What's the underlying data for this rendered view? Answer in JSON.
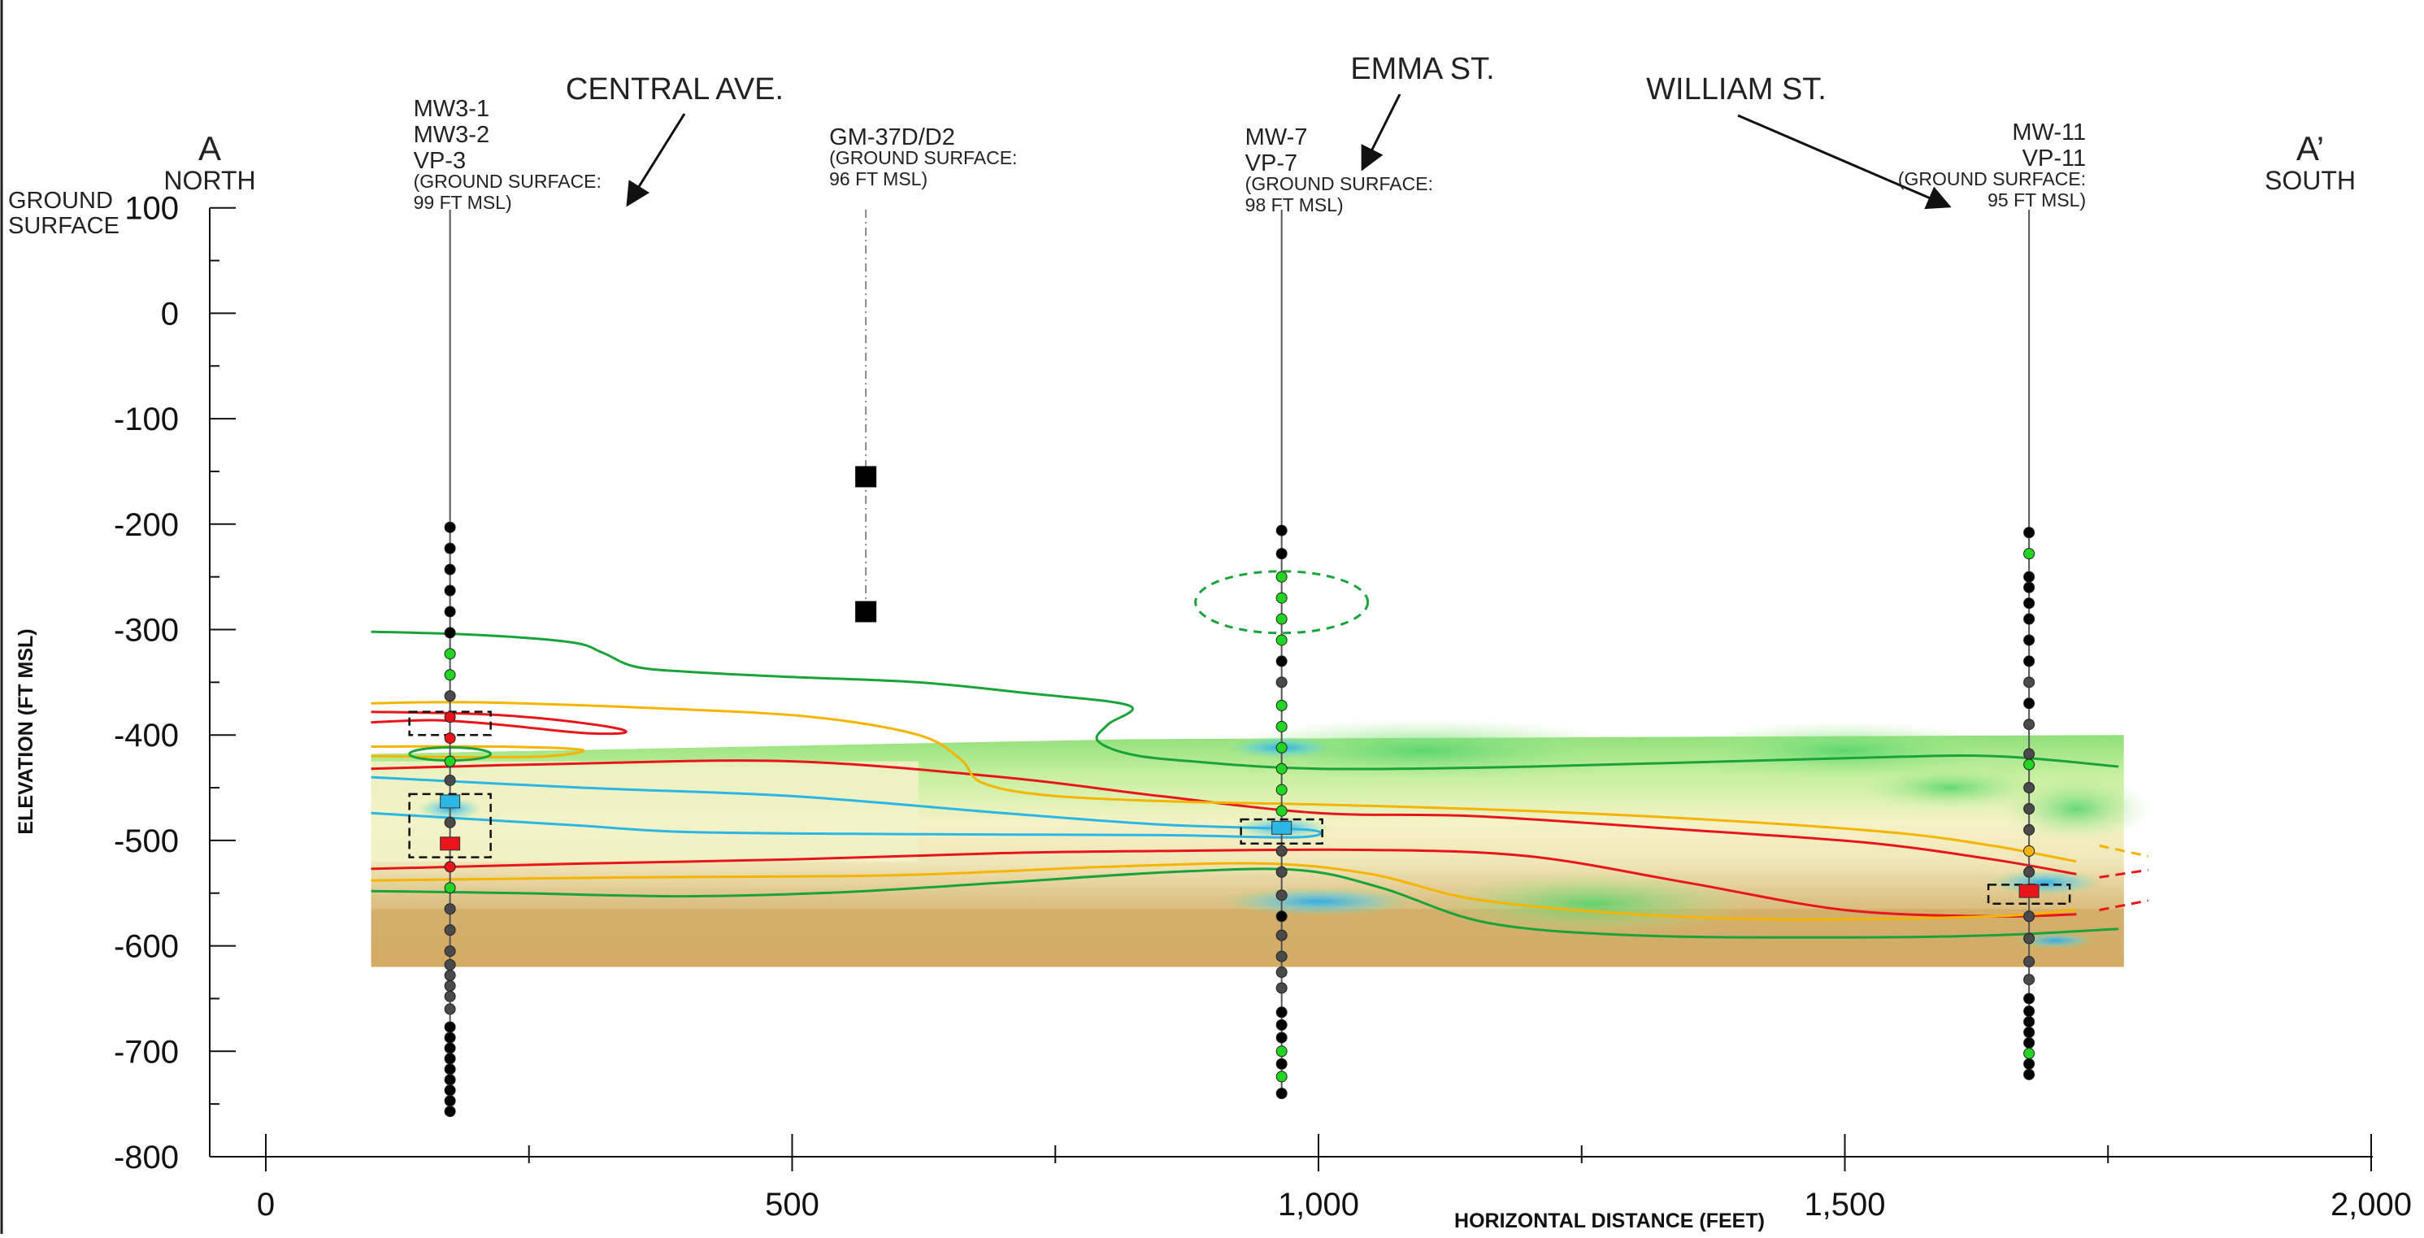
{
  "section": {
    "start_label": "A",
    "start_direction": "NORTH",
    "end_label": "A’",
    "end_direction": "SOUTH",
    "ground_surface_label": [
      "GROUND",
      "SURFACE"
    ]
  },
  "axes": {
    "y_title": "ELEVATION (FT MSL)",
    "x_title": "HORIZONTAL DISTANCE (FEET)",
    "y_range": [
      -800,
      100
    ],
    "x_range": [
      0,
      2000
    ],
    "y_ticks": [
      {
        "value": 100,
        "label": "100"
      },
      {
        "value": 0,
        "label": "0"
      },
      {
        "value": -100,
        "label": "-100"
      },
      {
        "value": -200,
        "label": "-200"
      },
      {
        "value": -300,
        "label": "-300"
      },
      {
        "value": -400,
        "label": "-400"
      },
      {
        "value": -500,
        "label": "-500"
      },
      {
        "value": -600,
        "label": "-600"
      },
      {
        "value": -700,
        "label": "-700"
      },
      {
        "value": -800,
        "label": "-800"
      }
    ],
    "x_ticks": [
      {
        "value": 0,
        "label": "0"
      },
      {
        "value": 500,
        "label": "500"
      },
      {
        "value": 1000,
        "label": "1,000"
      },
      {
        "value": 1500,
        "label": "1,500"
      },
      {
        "value": 2000,
        "label": "2,000"
      }
    ]
  },
  "streets": [
    {
      "name": "CENTRAL AVE.",
      "points_to_x": 345
    },
    {
      "name": "EMMA ST.",
      "points_to_x": 1040
    },
    {
      "name": "WILLIAM ST.",
      "points_to_x": 1600
    }
  ],
  "wells": [
    {
      "x": 175,
      "label_lines": [
        "MW3-1",
        "MW3-2",
        "VP-3"
      ],
      "ground_lines": [
        "(GROUND SURFACE:",
        "99 FT MSL)"
      ],
      "align": "left",
      "points": [
        {
          "elev": -203,
          "c": "black"
        },
        {
          "elev": -223,
          "c": "black"
        },
        {
          "elev": -243,
          "c": "black"
        },
        {
          "elev": -263,
          "c": "black"
        },
        {
          "elev": -283,
          "c": "black"
        },
        {
          "elev": -303,
          "c": "black"
        },
        {
          "elev": -323,
          "c": "green"
        },
        {
          "elev": -343,
          "c": "green"
        },
        {
          "elev": -363,
          "c": "grey"
        },
        {
          "elev": -383,
          "c": "red"
        },
        {
          "elev": -403,
          "c": "red"
        },
        {
          "elev": -425,
          "c": "green"
        },
        {
          "elev": -443,
          "c": "grey"
        },
        {
          "elev": -483,
          "c": "grey"
        },
        {
          "elev": -525,
          "c": "red"
        },
        {
          "elev": -545,
          "c": "green"
        },
        {
          "elev": -565,
          "c": "grey"
        },
        {
          "elev": -585,
          "c": "grey"
        },
        {
          "elev": -605,
          "c": "grey"
        },
        {
          "elev": -618,
          "c": "grey"
        },
        {
          "elev": -628,
          "c": "grey"
        },
        {
          "elev": -638,
          "c": "grey"
        },
        {
          "elev": -648,
          "c": "grey"
        },
        {
          "elev": -660,
          "c": "grey"
        },
        {
          "elev": -677,
          "c": "black"
        },
        {
          "elev": -687,
          "c": "black"
        },
        {
          "elev": -697,
          "c": "black"
        },
        {
          "elev": -707,
          "c": "black"
        },
        {
          "elev": -717,
          "c": "black"
        },
        {
          "elev": -727,
          "c": "black"
        },
        {
          "elev": -737,
          "c": "black"
        },
        {
          "elev": -747,
          "c": "black"
        },
        {
          "elev": -757,
          "c": "black"
        }
      ],
      "screens": [
        {
          "elev": -463,
          "c": "cyan"
        },
        {
          "elev": -503,
          "c": "red"
        }
      ],
      "boxes": [
        {
          "top": -378,
          "bottom": -400
        },
        {
          "top": -456,
          "bottom": -516
        }
      ]
    },
    {
      "x": 570,
      "label_lines": [
        "GM-37D/D2"
      ],
      "ground_lines": [
        "(GROUND SURFACE:",
        "96 FT MSL)"
      ],
      "align": "left",
      "dashed": true,
      "points": [],
      "squares": [
        {
          "elev": -155
        },
        {
          "elev": -283
        }
      ],
      "screens": [],
      "boxes": []
    },
    {
      "x": 965,
      "label_lines": [
        "MW-7",
        "VP-7"
      ],
      "ground_lines": [
        "(GROUND SURFACE:",
        "98 FT MSL)"
      ],
      "align": "left",
      "points": [
        {
          "elev": -206,
          "c": "black"
        },
        {
          "elev": -228,
          "c": "black"
        },
        {
          "elev": -250,
          "c": "green"
        },
        {
          "elev": -270,
          "c": "green"
        },
        {
          "elev": -290,
          "c": "green"
        },
        {
          "elev": -310,
          "c": "green"
        },
        {
          "elev": -330,
          "c": "black"
        },
        {
          "elev": -350,
          "c": "grey"
        },
        {
          "elev": -372,
          "c": "green"
        },
        {
          "elev": -392,
          "c": "green"
        },
        {
          "elev": -412,
          "c": "green"
        },
        {
          "elev": -432,
          "c": "green"
        },
        {
          "elev": -452,
          "c": "green"
        },
        {
          "elev": -472,
          "c": "green"
        },
        {
          "elev": -510,
          "c": "grey"
        },
        {
          "elev": -530,
          "c": "grey"
        },
        {
          "elev": -552,
          "c": "grey"
        },
        {
          "elev": -572,
          "c": "black"
        },
        {
          "elev": -590,
          "c": "grey"
        },
        {
          "elev": -610,
          "c": "grey"
        },
        {
          "elev": -625,
          "c": "grey"
        },
        {
          "elev": -640,
          "c": "grey"
        },
        {
          "elev": -663,
          "c": "black"
        },
        {
          "elev": -675,
          "c": "black"
        },
        {
          "elev": -687,
          "c": "black"
        },
        {
          "elev": -700,
          "c": "green"
        },
        {
          "elev": -712,
          "c": "black"
        },
        {
          "elev": -724,
          "c": "green"
        },
        {
          "elev": -740,
          "c": "black"
        }
      ],
      "screens": [
        {
          "elev": -488,
          "c": "cyan"
        }
      ],
      "boxes": [
        {
          "top": -480,
          "bottom": -503
        }
      ]
    },
    {
      "x": 1675,
      "label_lines": [
        "MW-11",
        "VP-11"
      ],
      "ground_lines": [
        "(GROUND SURFACE:",
        "95 FT MSL)"
      ],
      "align": "right",
      "points": [
        {
          "elev": -208,
          "c": "black"
        },
        {
          "elev": -228,
          "c": "green"
        },
        {
          "elev": -250,
          "c": "black"
        },
        {
          "elev": -260,
          "c": "black"
        },
        {
          "elev": -275,
          "c": "black"
        },
        {
          "elev": -290,
          "c": "black"
        },
        {
          "elev": -310,
          "c": "black"
        },
        {
          "elev": -330,
          "c": "black"
        },
        {
          "elev": -350,
          "c": "grey"
        },
        {
          "elev": -370,
          "c": "black"
        },
        {
          "elev": -390,
          "c": "grey"
        },
        {
          "elev": -418,
          "c": "grey"
        },
        {
          "elev": -428,
          "c": "green"
        },
        {
          "elev": -450,
          "c": "grey"
        },
        {
          "elev": -470,
          "c": "grey"
        },
        {
          "elev": -490,
          "c": "grey"
        },
        {
          "elev": -510,
          "c": "orange"
        },
        {
          "elev": -530,
          "c": "grey"
        },
        {
          "elev": -572,
          "c": "grey"
        },
        {
          "elev": -593,
          "c": "grey"
        },
        {
          "elev": -615,
          "c": "grey"
        },
        {
          "elev": -632,
          "c": "grey"
        },
        {
          "elev": -650,
          "c": "black"
        },
        {
          "elev": -662,
          "c": "black"
        },
        {
          "elev": -672,
          "c": "black"
        },
        {
          "elev": -682,
          "c": "black"
        },
        {
          "elev": -692,
          "c": "black"
        },
        {
          "elev": -702,
          "c": "green"
        },
        {
          "elev": -712,
          "c": "black"
        },
        {
          "elev": -722,
          "c": "black"
        }
      ],
      "screens": [
        {
          "elev": -548,
          "c": "red"
        }
      ],
      "boxes": [
        {
          "top": -542,
          "bottom": -560
        }
      ]
    }
  ],
  "colors": {
    "green": "#1aa33a",
    "red": "#e8151b",
    "orange": "#f5b400",
    "cyan": "#2bb6e3",
    "sand": "#d6b070",
    "pale": "#f2f2c8",
    "lightgreen": "#b8ec96",
    "dot_green": "#22d522",
    "dot_grey": "#4a4a4a",
    "dot_black": "#000000"
  },
  "contours": {
    "green": [
      [
        [
          100,
          -302
        ],
        [
          200,
          -305
        ],
        [
          290,
          -312
        ],
        [
          320,
          -322
        ],
        [
          350,
          -335
        ],
        [
          400,
          -340
        ],
        [
          500,
          -345
        ],
        [
          620,
          -350
        ],
        [
          720,
          -360
        ],
        [
          820,
          -372
        ],
        [
          800,
          -390
        ],
        [
          790,
          -405
        ],
        [
          820,
          -418
        ],
        [
          880,
          -425
        ],
        [
          1000,
          -432
        ],
        [
          1200,
          -430
        ],
        [
          1500,
          -422
        ],
        [
          1640,
          -420
        ],
        [
          1760,
          -430
        ]
      ],
      [
        [
          100,
          -548
        ],
        [
          240,
          -550
        ],
        [
          400,
          -553
        ],
        [
          550,
          -549
        ],
        [
          700,
          -540
        ],
        [
          860,
          -530
        ],
        [
          980,
          -528
        ],
        [
          1060,
          -545
        ],
        [
          1160,
          -578
        ],
        [
          1300,
          -590
        ],
        [
          1500,
          -592
        ],
        [
          1640,
          -590
        ],
        [
          1760,
          -584
        ]
      ]
    ],
    "red": [
      [
        [
          100,
          -378
        ],
        [
          200,
          -380
        ],
        [
          270,
          -385
        ],
        [
          330,
          -393
        ],
        [
          340,
          -398
        ],
        [
          300,
          -398
        ],
        [
          220,
          -390
        ],
        [
          160,
          -386
        ],
        [
          100,
          -388
        ]
      ],
      [
        [
          100,
          -432
        ],
        [
          300,
          -427
        ],
        [
          500,
          -425
        ],
        [
          700,
          -440
        ],
        [
          850,
          -458
        ],
        [
          1000,
          -474
        ],
        [
          1150,
          -477
        ],
        [
          1350,
          -490
        ],
        [
          1520,
          -502
        ],
        [
          1640,
          -518
        ],
        [
          1720,
          -532
        ]
      ],
      [
        [
          100,
          -527
        ],
        [
          300,
          -522
        ],
        [
          500,
          -518
        ],
        [
          700,
          -512
        ],
        [
          850,
          -510
        ],
        [
          1050,
          -509
        ],
        [
          1200,
          -515
        ],
        [
          1350,
          -540
        ],
        [
          1500,
          -566
        ],
        [
          1640,
          -572
        ],
        [
          1720,
          -570
        ]
      ]
    ],
    "orange": [
      [
        [
          100,
          -370
        ],
        [
          200,
          -369
        ],
        [
          380,
          -375
        ],
        [
          520,
          -383
        ],
        [
          620,
          -400
        ],
        [
          660,
          -423
        ],
        [
          680,
          -445
        ],
        [
          740,
          -457
        ],
        [
          860,
          -463
        ],
        [
          1000,
          -466
        ],
        [
          1200,
          -472
        ],
        [
          1400,
          -482
        ],
        [
          1550,
          -493
        ],
        [
          1640,
          -505
        ],
        [
          1720,
          -520
        ]
      ],
      [
        [
          100,
          -411
        ],
        [
          220,
          -411
        ],
        [
          300,
          -414
        ],
        [
          270,
          -420
        ],
        [
          200,
          -421
        ],
        [
          100,
          -420
        ]
      ],
      [
        [
          100,
          -538
        ],
        [
          350,
          -535
        ],
        [
          600,
          -533
        ],
        [
          800,
          -525
        ],
        [
          950,
          -522
        ],
        [
          1050,
          -532
        ],
        [
          1150,
          -556
        ],
        [
          1300,
          -570
        ],
        [
          1450,
          -575
        ],
        [
          1640,
          -572
        ],
        [
          1720,
          -566
        ]
      ]
    ],
    "blue": [
      [
        [
          100,
          -440
        ],
        [
          300,
          -450
        ],
        [
          500,
          -458
        ],
        [
          700,
          -474
        ],
        [
          850,
          -485
        ],
        [
          990,
          -490
        ],
        [
          980,
          -497
        ],
        [
          850,
          -495
        ],
        [
          600,
          -494
        ],
        [
          400,
          -492
        ],
        [
          300,
          -486
        ],
        [
          200,
          -480
        ],
        [
          100,
          -474
        ]
      ]
    ]
  }
}
